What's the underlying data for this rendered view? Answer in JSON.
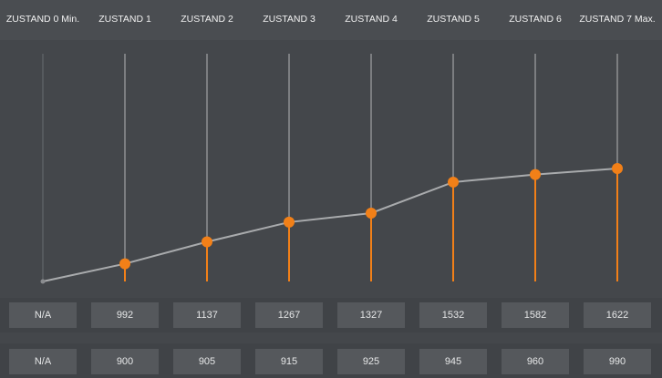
{
  "states": [
    {
      "label": "ZUSTAND 0 Min.",
      "value": null,
      "row1": "N/A",
      "row2": "N/A"
    },
    {
      "label": "ZUSTAND 1",
      "value": 992,
      "row1": "992",
      "row2": "900"
    },
    {
      "label": "ZUSTAND 2",
      "value": 1137,
      "row1": "1137",
      "row2": "905"
    },
    {
      "label": "ZUSTAND 3",
      "value": 1267,
      "row1": "1267",
      "row2": "915"
    },
    {
      "label": "ZUSTAND 4",
      "value": 1327,
      "row1": "1327",
      "row2": "925"
    },
    {
      "label": "ZUSTAND 5",
      "value": 1532,
      "row1": "1532",
      "row2": "945"
    },
    {
      "label": "ZUSTAND 6",
      "value": 1582,
      "row1": "1582",
      "row2": "960"
    },
    {
      "label": "ZUSTAND 7 Max.",
      "value": 1622,
      "row1": "1622",
      "row2": "990"
    }
  ],
  "colors": {
    "accent": "#f28018",
    "line": "#a9abad",
    "guide": "#8e9093"
  }
}
